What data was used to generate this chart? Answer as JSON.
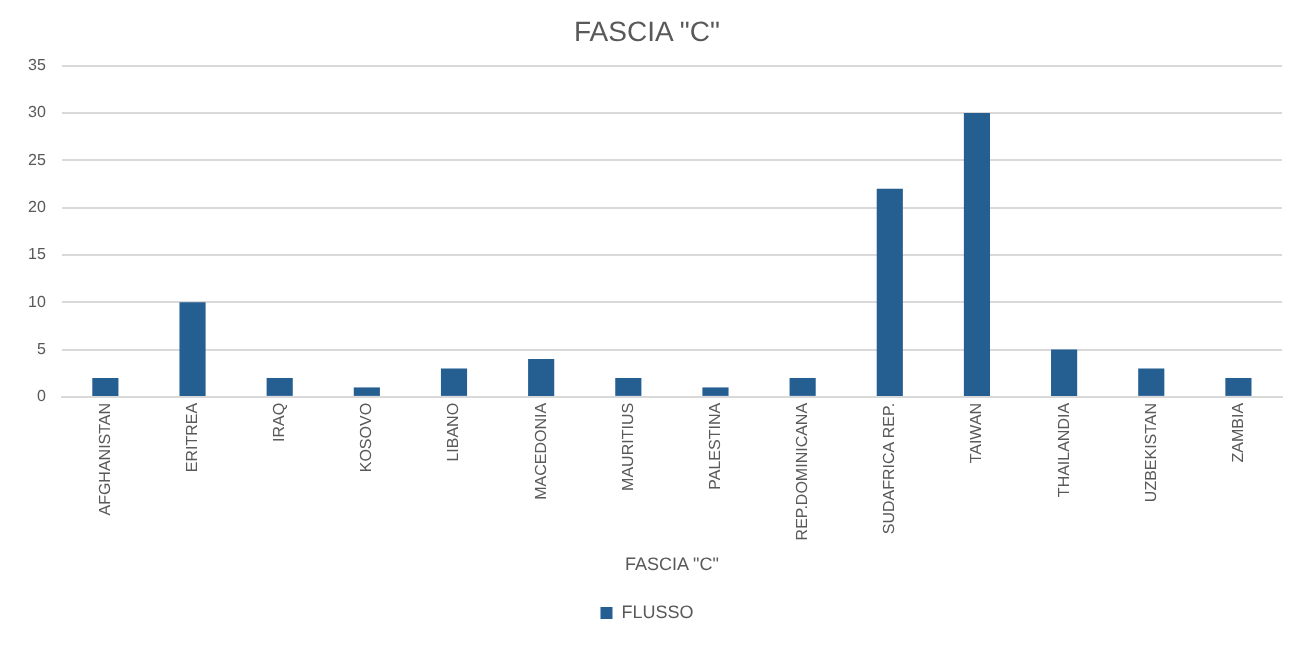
{
  "chart_data": {
    "type": "bar",
    "title": "FASCIA \"C\"",
    "xlabel": "FASCIA \"C\"",
    "categories": [
      "AFGHANISTAN",
      "ERITREA",
      "IRAQ",
      "KOSOVO",
      "LIBANO",
      "MACEDONIA",
      "MAURITIUS",
      "PALESTINA",
      "REP.DOMINICANA",
      "SUDAFRICA REP.",
      "TAIWAN",
      "THAILANDIA",
      "UZBEKISTAN",
      "ZAMBIA"
    ],
    "series": [
      {
        "name": "FLUSSO",
        "color": "#255e91",
        "values": [
          2,
          10,
          2,
          1,
          3,
          4,
          2,
          1,
          2,
          22,
          30,
          5,
          3,
          2
        ]
      }
    ],
    "ylim": [
      0,
      35
    ],
    "yticks": [
      0,
      5,
      10,
      15,
      20,
      25,
      30,
      35
    ],
    "grid": "y",
    "legend": "bottom"
  }
}
